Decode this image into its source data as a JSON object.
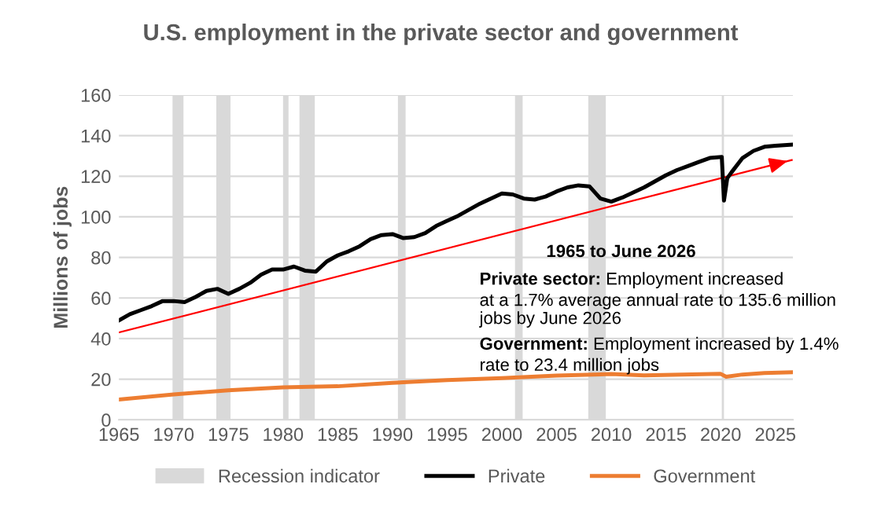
{
  "chart_data": {
    "type": "line",
    "title": "U.S. employment in the private sector and government",
    "ylabel": "Millions of jobs",
    "xlim": [
      1965,
      2026.6
    ],
    "xticks": [
      1965,
      1970,
      1975,
      1980,
      1985,
      1990,
      1995,
      2000,
      2005,
      2010,
      2015,
      2020,
      2025
    ],
    "ylim": [
      0,
      160
    ],
    "yticks": [
      0,
      20,
      40,
      60,
      80,
      100,
      120,
      140,
      160
    ],
    "grid": "y",
    "legend": "bottom",
    "bands": [
      {
        "axis": "x",
        "from": 1969.9,
        "to": 1970.9,
        "label": "Recession indicator",
        "color": "#d9d9d9"
      },
      {
        "axis": "x",
        "from": 1973.9,
        "to": 1975.2,
        "color": "#d9d9d9"
      },
      {
        "axis": "x",
        "from": 1980.0,
        "to": 1980.5,
        "color": "#d9d9d9"
      },
      {
        "axis": "x",
        "from": 1981.5,
        "to": 1982.9,
        "color": "#d9d9d9"
      },
      {
        "axis": "x",
        "from": 1990.5,
        "to": 1991.2,
        "color": "#d9d9d9"
      },
      {
        "axis": "x",
        "from": 2001.2,
        "to": 2001.9,
        "color": "#d9d9d9"
      },
      {
        "axis": "x",
        "from": 2007.9,
        "to": 2009.5,
        "color": "#d9d9d9"
      },
      {
        "axis": "x",
        "from": 2020.1,
        "to": 2020.3,
        "color": "#d9d9d9"
      }
    ],
    "series": [
      {
        "name": "Private",
        "color": "#000000",
        "x": [
          1965,
          1966,
          1967,
          1968,
          1969,
          1970,
          1971,
          1972,
          1973,
          1974,
          1975,
          1976,
          1977,
          1978,
          1979,
          1980,
          1981,
          1982,
          1983,
          1984,
          1985,
          1986,
          1987,
          1988,
          1989,
          1990,
          1991,
          1992,
          1993,
          1994,
          1995,
          1996,
          1997,
          1998,
          1999,
          2000,
          2001,
          2002,
          2003,
          2004,
          2005,
          2006,
          2007,
          2008,
          2009,
          2010,
          2011,
          2012,
          2013,
          2014,
          2015,
          2016,
          2017,
          2018,
          2019,
          2020.1,
          2020.3,
          2020.6,
          2021,
          2022,
          2023,
          2024,
          2025,
          2026.5
        ],
        "values": [
          49,
          52,
          54,
          56,
          58.5,
          58.5,
          58,
          60.5,
          63.5,
          64.5,
          62,
          64.5,
          67.5,
          71.5,
          74,
          74,
          75.5,
          73.5,
          73,
          78,
          81,
          83,
          85.5,
          89,
          91,
          91.5,
          89.5,
          90,
          92,
          95.5,
          98,
          100.5,
          103.5,
          106.5,
          109,
          111.5,
          111,
          109,
          108.5,
          110,
          112.5,
          114.5,
          115.5,
          115,
          109,
          107.5,
          109.5,
          112,
          114.5,
          117.5,
          120.5,
          123,
          125,
          127,
          129,
          129.5,
          108,
          119,
          122,
          129,
          132.5,
          134.5,
          135,
          135.6
        ]
      },
      {
        "name": "Government",
        "color": "#ed7d31",
        "x": [
          1965,
          1970,
          1975,
          1980,
          1985,
          1990,
          1995,
          2000,
          2005,
          2010,
          2013,
          2020,
          2020.5,
          2022,
          2024,
          2026.5
        ],
        "values": [
          10,
          12.5,
          14.5,
          16,
          16.5,
          18.2,
          19.5,
          20.5,
          21.8,
          22.5,
          21.9,
          22.6,
          21.2,
          22.3,
          23,
          23.4
        ]
      },
      {
        "type": "line",
        "color": "#ff0000",
        "x": [
          1965,
          2026.5
        ],
        "values": [
          43,
          128
        ]
      }
    ],
    "annotations": [
      "1965 to June 2026",
      "Private sector: Employment increased\nat a 1.7% average annual rate to 135.6 million\njobs by June 2026",
      "Government: Employment increased by 1.4%\nrate to 23.4 million jobs"
    ]
  }
}
